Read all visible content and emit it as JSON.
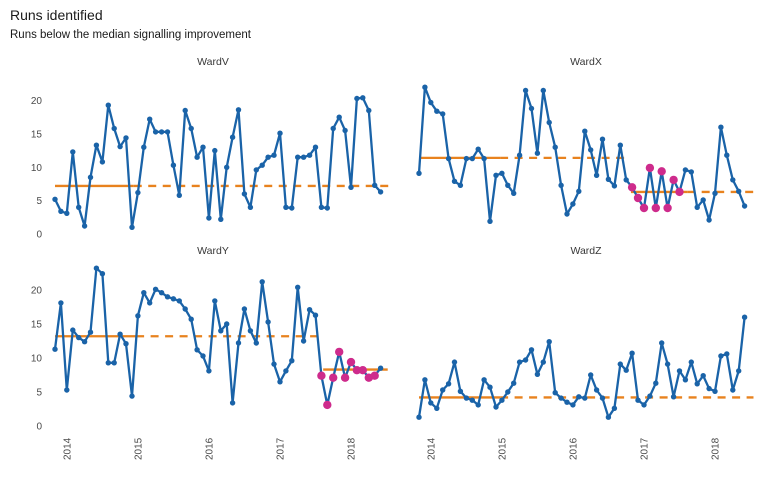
{
  "header": {
    "title": "Runs identified",
    "subtitle": "Runs below the median signalling improvement"
  },
  "colors": {
    "line": "#1a63a8",
    "point": "#1a63a8",
    "median": "#e8821e",
    "signal": "#ce2b8c",
    "axis_text": "#4a4a4a",
    "facet_title_text": "#383838",
    "title_text": "#1a1a1a",
    "background": "#ffffff"
  },
  "axes": {
    "y_ticks": [
      0,
      5,
      10,
      15,
      20
    ],
    "x_ticks": [
      "2014",
      "2015",
      "2016",
      "2017",
      "2018"
    ],
    "x_tick_indices": [
      2,
      14,
      26,
      38,
      50
    ],
    "ylim": [
      0,
      23.5
    ],
    "n_points": 56,
    "x_period": "monthly",
    "grid": false,
    "legend": false
  },
  "chart_data": {
    "type": "line",
    "title": "Runs identified",
    "subtitle": "Runs below the median signalling improvement",
    "facets": [
      {
        "title": "WardV",
        "values": [
          5.2,
          3.4,
          3.1,
          12.3,
          4.0,
          1.2,
          8.5,
          13.3,
          10.8,
          19.3,
          15.8,
          13.1,
          14.4,
          1.0,
          6.2,
          13.0,
          17.2,
          15.3,
          15.3,
          15.3,
          10.3,
          5.8,
          18.5,
          15.8,
          11.5,
          13.0,
          2.4,
          12.5,
          2.2,
          10.0,
          14.5,
          18.6,
          6.0,
          4.0,
          9.6,
          10.3,
          11.5,
          11.8,
          15.1,
          4.0,
          3.9,
          11.5,
          11.5,
          11.8,
          13.0,
          4.0,
          3.9,
          15.8,
          17.5,
          15.5,
          7.0,
          20.3,
          20.4,
          18.5,
          7.3,
          6.3
        ],
        "signals": [],
        "medians": [
          {
            "value": 7.2,
            "start": 0,
            "end": 13.3,
            "style": "solid"
          },
          {
            "value": 7.2,
            "start": 13.3,
            "end": 56.3,
            "style": "dashed"
          }
        ]
      },
      {
        "title": "WardX",
        "values": [
          9.1,
          22.0,
          19.7,
          18.4,
          18.0,
          11.3,
          7.9,
          7.3,
          11.3,
          11.3,
          12.7,
          11.3,
          1.9,
          8.8,
          9.1,
          7.3,
          6.1,
          11.8,
          21.5,
          18.8,
          12.1,
          21.5,
          16.7,
          13.0,
          7.3,
          3.0,
          4.5,
          6.4,
          15.4,
          12.6,
          8.8,
          14.2,
          8.2,
          7.2,
          13.3,
          8.1,
          7.0,
          5.4,
          3.9,
          9.9,
          3.9,
          9.4,
          3.9,
          8.1,
          6.3,
          9.6,
          9.3,
          4.0,
          5.1,
          2.1,
          6.1,
          16.0,
          11.8,
          8.1,
          6.4,
          4.2
        ],
        "signals": [
          36,
          37,
          38,
          39,
          40,
          41,
          42,
          43,
          44
        ],
        "medians": [
          {
            "value": 11.4,
            "start": 0,
            "end": 13.7,
            "style": "solid"
          },
          {
            "value": 11.4,
            "start": 13.7,
            "end": 35.2,
            "style": "dashed"
          },
          {
            "value": 6.3,
            "start": 35.8,
            "end": 45.3,
            "style": "solid"
          },
          {
            "value": 6.3,
            "start": 45.3,
            "end": 57.2,
            "style": "dashed"
          }
        ]
      },
      {
        "title": "WardY",
        "values": [
          11.3,
          18.1,
          5.3,
          14.1,
          13.0,
          12.4,
          13.8,
          23.2,
          22.4,
          9.3,
          9.3,
          13.5,
          12.1,
          4.4,
          16.2,
          19.6,
          18.1,
          20.1,
          19.6,
          19.0,
          18.7,
          18.4,
          17.2,
          15.7,
          11.2,
          10.3,
          8.1,
          18.4,
          14.0,
          15.0,
          3.4,
          12.2,
          17.2,
          14.0,
          12.2,
          21.2,
          15.3,
          9.1,
          6.5,
          8.1,
          9.6,
          20.4,
          12.5,
          17.1,
          16.3,
          7.4,
          3.1,
          7.1,
          10.9,
          7.1,
          9.4,
          8.2,
          8.2,
          7.1,
          7.4,
          8.5
        ],
        "signals": [
          45,
          46,
          47,
          48,
          49,
          50,
          51,
          52,
          53,
          54
        ],
        "medians": [
          {
            "value": 13.2,
            "start": 0,
            "end": 13.7,
            "style": "solid"
          },
          {
            "value": 13.2,
            "start": 13.7,
            "end": 45.0,
            "style": "dashed"
          },
          {
            "value": 8.3,
            "start": 45.3,
            "end": 56.2,
            "style": "solid"
          }
        ]
      },
      {
        "title": "WardZ",
        "values": [
          1.3,
          6.8,
          3.4,
          2.6,
          5.3,
          6.2,
          9.4,
          5.1,
          4.1,
          3.8,
          3.1,
          6.8,
          5.7,
          2.8,
          3.8,
          5.0,
          6.3,
          9.4,
          9.7,
          11.2,
          7.6,
          9.4,
          12.4,
          4.9,
          4.1,
          3.5,
          3.1,
          4.3,
          4.1,
          7.5,
          5.3,
          4.1,
          1.3,
          2.6,
          9.1,
          8.2,
          10.7,
          3.8,
          3.1,
          4.4,
          6.3,
          12.2,
          9.1,
          4.3,
          8.1,
          6.8,
          9.4,
          6.2,
          7.4,
          5.5,
          5.1,
          10.3,
          10.6,
          5.3,
          8.1,
          16.0
        ],
        "signals": [],
        "medians": [
          {
            "value": 4.2,
            "start": 0,
            "end": 13.7,
            "style": "solid"
          },
          {
            "value": 4.2,
            "start": 13.7,
            "end": 56.5,
            "style": "dashed"
          }
        ]
      }
    ]
  }
}
